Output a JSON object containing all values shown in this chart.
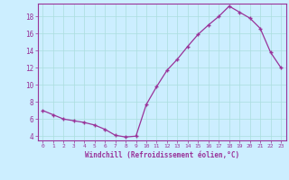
{
  "x": [
    0,
    1,
    2,
    3,
    4,
    5,
    6,
    7,
    8,
    9,
    10,
    11,
    12,
    13,
    14,
    15,
    16,
    17,
    18,
    19,
    20,
    21,
    22,
    23
  ],
  "y": [
    7.0,
    6.5,
    6.0,
    5.8,
    5.6,
    5.3,
    4.8,
    4.1,
    3.9,
    4.0,
    7.7,
    9.8,
    11.7,
    13.0,
    14.5,
    15.9,
    17.0,
    18.0,
    19.2,
    18.5,
    17.8,
    16.6,
    13.8,
    12.0
  ],
  "line_color": "#993399",
  "marker": "+",
  "bg_color": "#cceeff",
  "grid_color": "#aadddd",
  "xlabel": "Windchill (Refroidissement éolien,°C)",
  "xlabel_color": "#993399",
  "tick_color": "#993399",
  "ylim": [
    3.5,
    19.5
  ],
  "xlim": [
    -0.5,
    23.5
  ],
  "yticks": [
    4,
    6,
    8,
    10,
    12,
    14,
    16,
    18
  ],
  "xticks": [
    0,
    1,
    2,
    3,
    4,
    5,
    6,
    7,
    8,
    9,
    10,
    11,
    12,
    13,
    14,
    15,
    16,
    17,
    18,
    19,
    20,
    21,
    22,
    23
  ]
}
